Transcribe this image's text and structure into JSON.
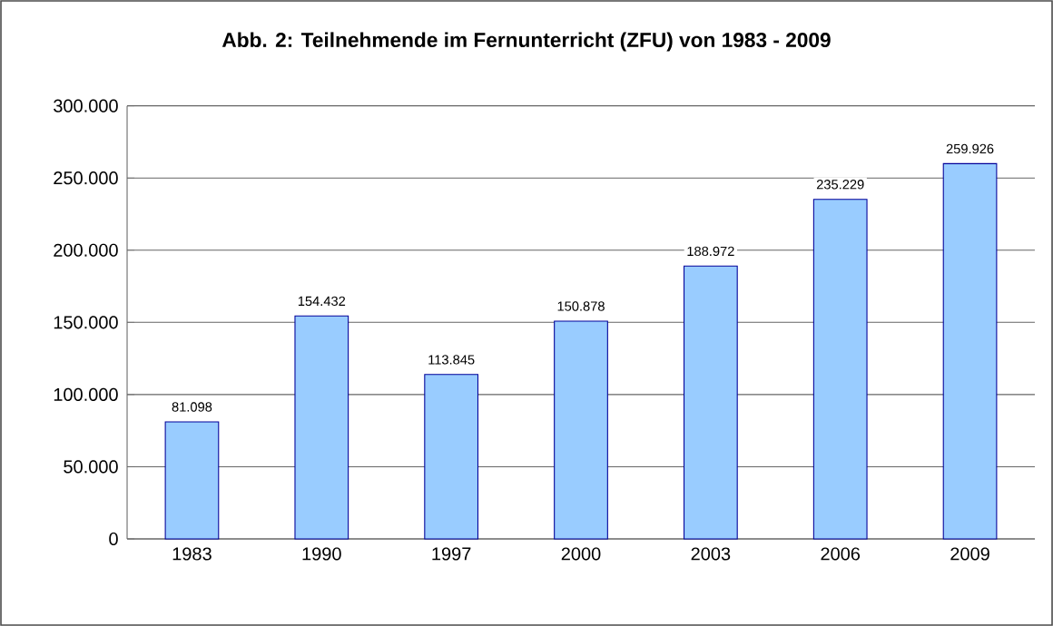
{
  "chart_data": {
    "type": "bar",
    "title": "Abb. 2:  Teilnehmende im Fernunterricht (ZFU) von 1983 - 2009",
    "categories": [
      "1983",
      "1990",
      "1997",
      "2000",
      "2003",
      "2006",
      "2009"
    ],
    "values": [
      81098,
      154432,
      113845,
      150878,
      188972,
      235229,
      259926
    ],
    "value_labels": [
      "81.098",
      "154.432",
      "113.845",
      "150.878",
      "188.972",
      "235.229",
      "259.926"
    ],
    "color": "#99ccff",
    "ylim": [
      0,
      300000
    ],
    "yticks": [
      {
        "value": 0,
        "label": "0"
      },
      {
        "value": 50000,
        "label": "50.000"
      },
      {
        "value": 100000,
        "label": "100.000"
      },
      {
        "value": 150000,
        "label": "150.000"
      },
      {
        "value": 200000,
        "label": "200.000"
      },
      {
        "value": 250000,
        "label": "250.000"
      },
      {
        "value": 300000,
        "label": "300.000"
      }
    ],
    "grid": "y"
  }
}
